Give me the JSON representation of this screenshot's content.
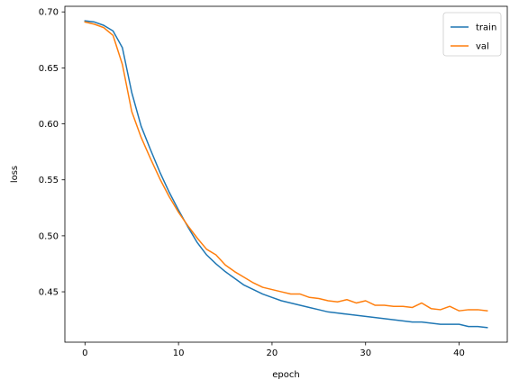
{
  "chart_data": {
    "type": "line",
    "title": "",
    "xlabel": "epoch",
    "ylabel": "loss",
    "xlim": [
      -2.15,
      45.15
    ],
    "ylim": [
      0.405,
      0.705
    ],
    "xticks": [
      0,
      10,
      20,
      30,
      40
    ],
    "yticks": [
      0.45,
      0.5,
      0.55,
      0.6,
      0.65,
      0.7
    ],
    "ytick_labels": [
      "0.45",
      "0.50",
      "0.55",
      "0.60",
      "0.65",
      "0.70"
    ],
    "grid": false,
    "legend_position": "top-right",
    "x": [
      0,
      1,
      2,
      3,
      4,
      5,
      6,
      7,
      8,
      9,
      10,
      11,
      12,
      13,
      14,
      15,
      16,
      17,
      18,
      19,
      20,
      21,
      22,
      23,
      24,
      25,
      26,
      27,
      28,
      29,
      30,
      31,
      32,
      33,
      34,
      35,
      36,
      37,
      38,
      39,
      40,
      41,
      42,
      43
    ],
    "series": [
      {
        "name": "train",
        "color": "#1f77b4",
        "values": [
          0.692,
          0.691,
          0.688,
          0.683,
          0.668,
          0.628,
          0.598,
          0.577,
          0.557,
          0.539,
          0.523,
          0.508,
          0.494,
          0.483,
          0.475,
          0.468,
          0.462,
          0.456,
          0.452,
          0.448,
          0.445,
          0.442,
          0.44,
          0.438,
          0.436,
          0.434,
          0.432,
          0.431,
          0.43,
          0.429,
          0.428,
          0.427,
          0.426,
          0.425,
          0.424,
          0.423,
          0.423,
          0.422,
          0.421,
          0.421,
          0.421,
          0.419,
          0.419,
          0.418
        ]
      },
      {
        "name": "val",
        "color": "#ff7f0e",
        "values": [
          0.691,
          0.689,
          0.686,
          0.679,
          0.653,
          0.611,
          0.588,
          0.569,
          0.551,
          0.535,
          0.521,
          0.509,
          0.498,
          0.488,
          0.483,
          0.474,
          0.468,
          0.463,
          0.458,
          0.454,
          0.452,
          0.45,
          0.448,
          0.448,
          0.445,
          0.444,
          0.442,
          0.441,
          0.443,
          0.44,
          0.442,
          0.438,
          0.438,
          0.437,
          0.437,
          0.436,
          0.44,
          0.435,
          0.434,
          0.437,
          0.433,
          0.434,
          0.434,
          0.433
        ]
      }
    ]
  }
}
